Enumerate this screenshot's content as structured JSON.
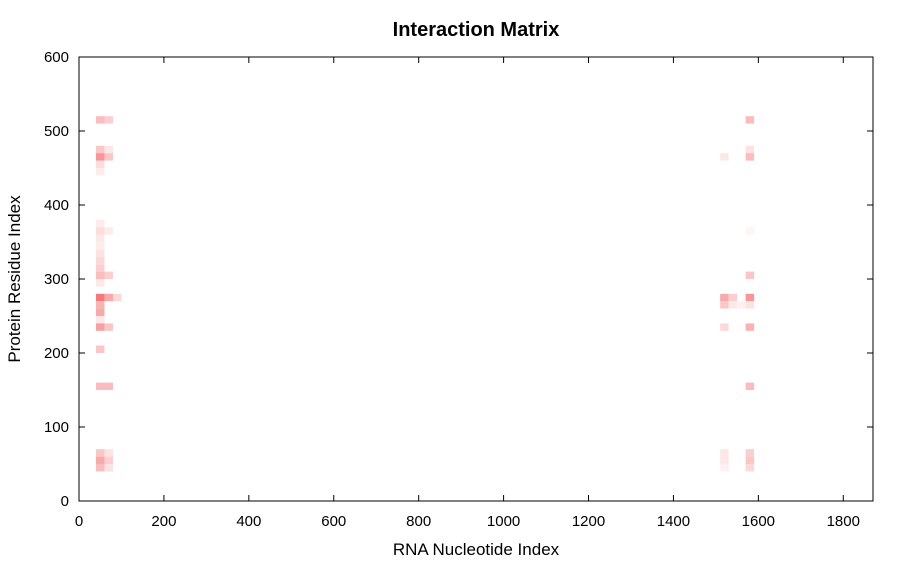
{
  "chart_data": {
    "type": "heatmap",
    "title": "Interaction Matrix",
    "xlabel": "RNA Nucleotide Index",
    "ylabel": "Protein Residue Index",
    "xlim": [
      0,
      1870
    ],
    "ylim": [
      0,
      600
    ],
    "xticks": [
      0,
      200,
      400,
      600,
      800,
      1000,
      1200,
      1400,
      1600,
      1800
    ],
    "yticks": [
      0,
      100,
      200,
      300,
      400,
      500,
      600
    ],
    "grid": false,
    "colormap": {
      "low": "#ffffff",
      "high": "#f04040"
    },
    "cell_size": [
      20,
      10
    ],
    "cells": [
      {
        "x": 50,
        "y": 510,
        "v": 0.35
      },
      {
        "x": 70,
        "y": 510,
        "v": 0.25
      },
      {
        "x": 50,
        "y": 470,
        "v": 0.3
      },
      {
        "x": 70,
        "y": 470,
        "v": 0.12
      },
      {
        "x": 50,
        "y": 460,
        "v": 0.55
      },
      {
        "x": 70,
        "y": 460,
        "v": 0.3
      },
      {
        "x": 50,
        "y": 450,
        "v": 0.18
      },
      {
        "x": 50,
        "y": 440,
        "v": 0.1
      },
      {
        "x": 50,
        "y": 370,
        "v": 0.1
      },
      {
        "x": 50,
        "y": 360,
        "v": 0.18
      },
      {
        "x": 70,
        "y": 360,
        "v": 0.1
      },
      {
        "x": 50,
        "y": 350,
        "v": 0.12
      },
      {
        "x": 50,
        "y": 340,
        "v": 0.1
      },
      {
        "x": 50,
        "y": 330,
        "v": 0.15
      },
      {
        "x": 50,
        "y": 320,
        "v": 0.2
      },
      {
        "x": 50,
        "y": 310,
        "v": 0.25
      },
      {
        "x": 50,
        "y": 300,
        "v": 0.35
      },
      {
        "x": 70,
        "y": 300,
        "v": 0.25
      },
      {
        "x": 50,
        "y": 290,
        "v": 0.12
      },
      {
        "x": 50,
        "y": 270,
        "v": 0.7
      },
      {
        "x": 70,
        "y": 270,
        "v": 0.45
      },
      {
        "x": 90,
        "y": 270,
        "v": 0.2
      },
      {
        "x": 50,
        "y": 260,
        "v": 0.4
      },
      {
        "x": 50,
        "y": 250,
        "v": 0.45
      },
      {
        "x": 50,
        "y": 240,
        "v": 0.12
      },
      {
        "x": 50,
        "y": 230,
        "v": 0.5
      },
      {
        "x": 70,
        "y": 230,
        "v": 0.3
      },
      {
        "x": 50,
        "y": 200,
        "v": 0.3
      },
      {
        "x": 50,
        "y": 150,
        "v": 0.35
      },
      {
        "x": 70,
        "y": 150,
        "v": 0.35
      },
      {
        "x": 50,
        "y": 60,
        "v": 0.3
      },
      {
        "x": 70,
        "y": 60,
        "v": 0.15
      },
      {
        "x": 50,
        "y": 50,
        "v": 0.45
      },
      {
        "x": 70,
        "y": 50,
        "v": 0.25
      },
      {
        "x": 50,
        "y": 40,
        "v": 0.35
      },
      {
        "x": 70,
        "y": 40,
        "v": 0.15
      },
      {
        "x": 1580,
        "y": 510,
        "v": 0.35
      },
      {
        "x": 1580,
        "y": 470,
        "v": 0.15
      },
      {
        "x": 1520,
        "y": 460,
        "v": 0.12
      },
      {
        "x": 1580,
        "y": 460,
        "v": 0.35
      },
      {
        "x": 1580,
        "y": 360,
        "v": 0.05
      },
      {
        "x": 1580,
        "y": 300,
        "v": 0.3
      },
      {
        "x": 1520,
        "y": 270,
        "v": 0.45
      },
      {
        "x": 1540,
        "y": 270,
        "v": 0.25
      },
      {
        "x": 1580,
        "y": 270,
        "v": 0.55
      },
      {
        "x": 1520,
        "y": 260,
        "v": 0.3
      },
      {
        "x": 1540,
        "y": 260,
        "v": 0.12
      },
      {
        "x": 1560,
        "y": 260,
        "v": 0.08
      },
      {
        "x": 1580,
        "y": 260,
        "v": 0.15
      },
      {
        "x": 1520,
        "y": 230,
        "v": 0.2
      },
      {
        "x": 1580,
        "y": 230,
        "v": 0.4
      },
      {
        "x": 1580,
        "y": 150,
        "v": 0.35
      },
      {
        "x": 1520,
        "y": 60,
        "v": 0.12
      },
      {
        "x": 1580,
        "y": 60,
        "v": 0.25
      },
      {
        "x": 1520,
        "y": 50,
        "v": 0.12
      },
      {
        "x": 1580,
        "y": 50,
        "v": 0.3
      },
      {
        "x": 1520,
        "y": 40,
        "v": 0.08
      },
      {
        "x": 1580,
        "y": 40,
        "v": 0.2
      }
    ]
  }
}
